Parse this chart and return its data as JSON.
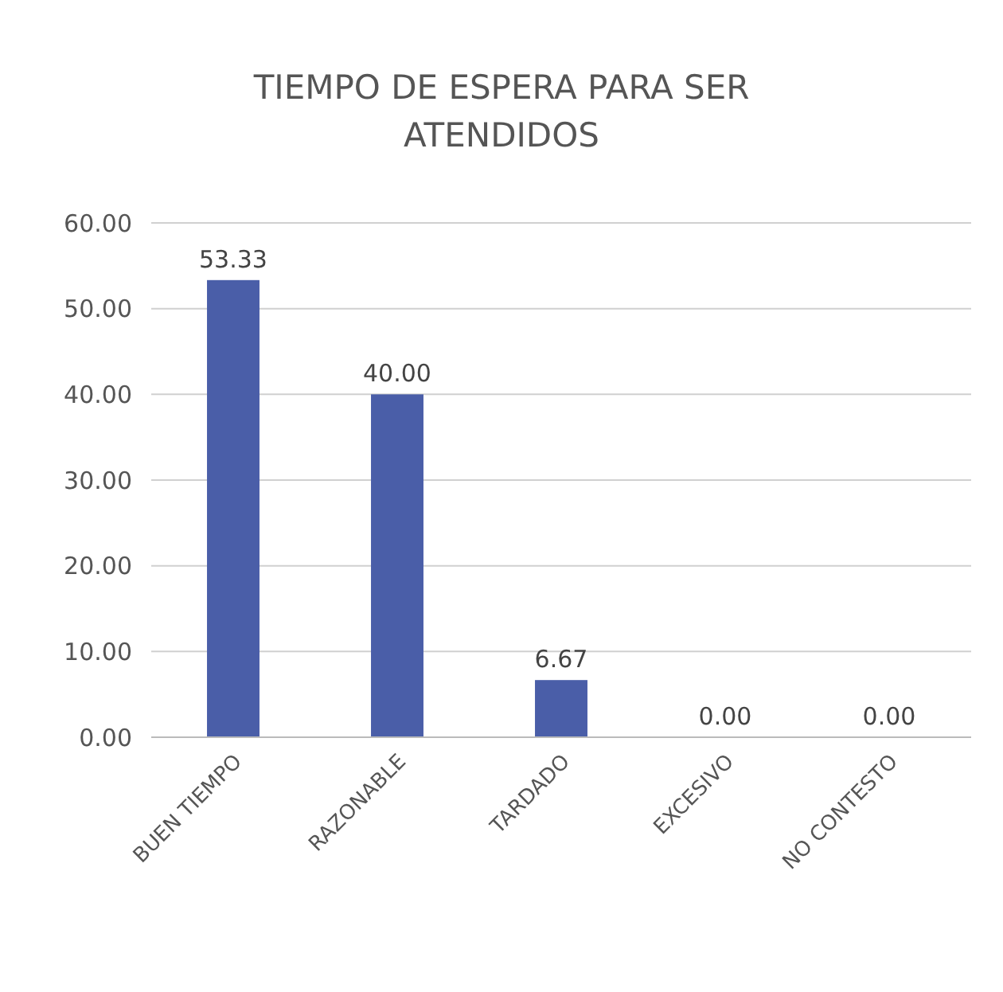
{
  "chart_data": {
    "type": "bar",
    "title": "TIEMPO DE ESPERA PARA SER ATENDIDOS",
    "categories": [
      "BUEN TIEMPO",
      "RAZONABLE",
      "TARDADO",
      "EXCESIVO",
      "NO CONTESTO"
    ],
    "values": [
      53.33,
      40.0,
      6.67,
      0,
      0
    ],
    "value_labels": [
      "53.33",
      "40.00",
      "6.67",
      "0.00",
      "0.00"
    ],
    "color": "#4a5ea8",
    "ylim": [
      0,
      60
    ],
    "yticks": [
      {
        "value": 0,
        "label": "0.00"
      },
      {
        "value": 10,
        "label": "10.00"
      },
      {
        "value": 20,
        "label": "20.00"
      },
      {
        "value": 30,
        "label": "30.00"
      },
      {
        "value": 40,
        "label": "40.00"
      },
      {
        "value": 50,
        "label": "50.00"
      },
      {
        "value": 60,
        "label": "60.00"
      }
    ],
    "grid": true
  }
}
